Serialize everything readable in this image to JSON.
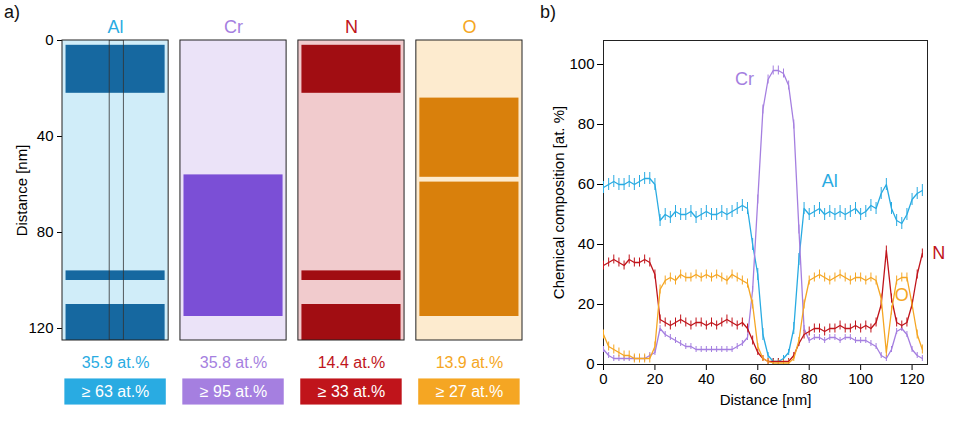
{
  "panel_a": {
    "panel": "a)",
    "y_label": "Distance [nm]",
    "ylim": [
      0,
      125
    ],
    "yticks": [
      0,
      40,
      80,
      120
    ],
    "columns": [
      {
        "element": "Al",
        "color": "#29abe2",
        "isosurface_color": "#1668a0",
        "composition": "35.9 at.%",
        "threshold": "≥ 63 at.%",
        "isosurfaces": [
          [
            2,
            22
          ],
          [
            96,
            100
          ],
          [
            110,
            125
          ]
        ]
      },
      {
        "element": "Cr",
        "color": "#a57fe0",
        "isosurface_color": "#7b4fd6",
        "composition": "35.8 at.%",
        "threshold": "≥ 95 at.%",
        "isosurfaces": [
          [
            56,
            115
          ]
        ]
      },
      {
        "element": "N",
        "color": "#c0141b",
        "isosurface_color": "#a10d12",
        "composition": "14.4 at.%",
        "threshold": "≥ 33 at.%",
        "isosurfaces": [
          [
            2,
            22
          ],
          [
            96,
            100
          ],
          [
            110,
            125
          ]
        ]
      },
      {
        "element": "O",
        "color": "#f5a623",
        "isosurface_color": "#d9800c",
        "composition": "13.9 at.%",
        "threshold": "≥ 27 at.%",
        "isosurfaces": [
          [
            24,
            57
          ],
          [
            59,
            115
          ]
        ]
      }
    ]
  },
  "chart_data": {
    "type": "line",
    "panel": "b)",
    "x_label": "Distance [nm]",
    "y_label": "Chemical composition [at. %]",
    "x": [
      0,
      2,
      4,
      6,
      8,
      10,
      12,
      14,
      16,
      18,
      20,
      22,
      24,
      26,
      28,
      30,
      32,
      34,
      36,
      38,
      40,
      42,
      44,
      46,
      48,
      50,
      52,
      54,
      56,
      58,
      60,
      62,
      64,
      66,
      68,
      70,
      72,
      74,
      76,
      78,
      80,
      82,
      84,
      86,
      88,
      90,
      92,
      94,
      96,
      98,
      100,
      102,
      104,
      106,
      108,
      110,
      112,
      114,
      116,
      118,
      120,
      122,
      124
    ],
    "xlim": [
      0,
      126
    ],
    "xticks": [
      0,
      20,
      40,
      60,
      80,
      100,
      120
    ],
    "ylim": [
      0,
      108
    ],
    "yticks": [
      0,
      20,
      40,
      60,
      80,
      100
    ],
    "series": [
      {
        "name": "Al",
        "color": "#29abe2",
        "values": [
          59,
          60,
          61,
          60,
          60,
          61,
          60,
          61,
          62,
          62,
          60,
          48,
          50,
          49,
          51,
          50,
          50,
          51,
          49,
          50,
          51,
          50,
          50,
          51,
          50,
          51,
          52,
          53,
          52,
          40,
          30,
          10,
          3,
          1,
          1,
          2,
          4,
          12,
          35,
          52,
          50,
          51,
          52,
          50,
          51,
          50,
          51,
          50,
          51,
          52,
          50,
          51,
          53,
          52,
          57,
          60,
          52,
          48,
          47,
          50,
          55,
          57,
          58
        ],
        "errors": [
          2,
          2,
          2,
          2,
          2,
          2,
          2,
          2,
          2,
          2,
          2,
          2,
          2,
          2,
          2,
          2,
          2,
          2,
          2,
          2,
          2,
          2,
          2,
          2,
          2,
          2,
          2,
          2,
          2,
          2,
          2,
          2,
          1,
          1,
          1,
          1,
          1,
          2,
          2,
          2,
          2,
          2,
          2,
          2,
          2,
          2,
          2,
          2,
          2,
          2,
          2,
          2,
          2,
          2,
          2,
          2,
          2,
          2,
          2,
          2,
          2,
          2,
          2
        ]
      },
      {
        "name": "Cr",
        "color": "#a57fe0",
        "values": [
          5,
          3,
          2,
          2,
          2,
          2,
          2,
          2,
          2,
          3,
          4,
          12,
          10,
          9,
          8,
          7,
          6,
          6,
          5,
          5,
          5,
          5,
          5,
          5,
          5,
          5,
          6,
          7,
          9,
          25,
          55,
          85,
          95,
          98,
          98,
          97,
          93,
          80,
          45,
          12,
          8,
          9,
          9,
          8,
          9,
          9,
          8,
          9,
          9,
          8,
          8,
          8,
          7,
          6,
          3,
          2,
          5,
          11,
          12,
          10,
          5,
          3,
          2
        ],
        "errors": [
          1,
          1,
          1,
          1,
          1,
          1,
          1,
          1,
          1,
          1,
          1,
          1,
          1,
          1,
          1,
          1,
          1,
          1,
          1,
          1,
          1,
          1,
          1,
          1,
          1,
          1,
          1,
          1,
          1,
          1,
          1.5,
          1.5,
          1.5,
          1.5,
          1.5,
          1.5,
          1.5,
          1.5,
          1.5,
          1,
          1,
          1,
          1,
          1,
          1,
          1,
          1,
          1,
          1,
          1,
          1,
          1,
          1,
          1,
          1,
          1,
          1,
          1,
          1,
          1,
          1,
          1,
          1
        ]
      },
      {
        "name": "N",
        "color": "#c0141b",
        "values": [
          33,
          34,
          35,
          34,
          33,
          35,
          34,
          34,
          35,
          34,
          30,
          15,
          14,
          13,
          14,
          15,
          14,
          13,
          14,
          14,
          13,
          14,
          13,
          14,
          15,
          14,
          13,
          14,
          12,
          8,
          4,
          2,
          1,
          1,
          1,
          1,
          1,
          3,
          7,
          10,
          11,
          12,
          12,
          11,
          12,
          12,
          13,
          12,
          12,
          13,
          12,
          13,
          12,
          14,
          20,
          38,
          22,
          14,
          13,
          14,
          20,
          30,
          37
        ],
        "errors": [
          1.5,
          1.5,
          1.5,
          1.5,
          1.5,
          1.5,
          1.5,
          1.5,
          1.5,
          1.5,
          1.5,
          1.5,
          1.5,
          1.5,
          1.5,
          1.5,
          1.5,
          1.5,
          1.5,
          1.5,
          1.5,
          1.5,
          1.5,
          1.5,
          1.5,
          1.5,
          1.5,
          1.5,
          1.5,
          1.5,
          1,
          1,
          1,
          1,
          1,
          1,
          1,
          1,
          1,
          1.5,
          1.5,
          1.5,
          1.5,
          1.5,
          1.5,
          1.5,
          1.5,
          1.5,
          1.5,
          1.5,
          1.5,
          1.5,
          1.5,
          1.5,
          1.5,
          1.5,
          1.5,
          1.5,
          1.5,
          1.5,
          1.5,
          1.5,
          1.5
        ]
      },
      {
        "name": "O",
        "color": "#f5a623",
        "values": [
          10,
          6,
          5,
          4,
          3,
          3,
          2,
          2,
          2,
          2,
          6,
          25,
          28,
          29,
          28,
          30,
          29,
          29,
          30,
          29,
          30,
          29,
          30,
          29,
          28,
          30,
          29,
          28,
          27,
          20,
          6,
          2,
          1,
          0.5,
          0.5,
          0.5,
          0.5,
          2,
          8,
          20,
          28,
          29,
          30,
          29,
          28,
          29,
          30,
          29,
          28,
          29,
          29,
          28,
          29,
          28,
          22,
          4,
          18,
          28,
          29,
          29,
          20,
          10,
          5
        ],
        "errors": [
          1.5,
          1.5,
          1.5,
          1.5,
          1.5,
          1.5,
          1.5,
          1.5,
          1.5,
          1.5,
          1.5,
          1.5,
          1.5,
          1.5,
          1.5,
          1.5,
          1.5,
          1.5,
          1.5,
          1.5,
          1.5,
          1.5,
          1.5,
          1.5,
          1.5,
          1.5,
          1.5,
          1.5,
          1.5,
          1.5,
          1,
          1,
          1,
          1,
          1,
          1,
          1,
          1,
          1,
          1.5,
          1.5,
          1.5,
          1.5,
          1.5,
          1.5,
          1.5,
          1.5,
          1.5,
          1.5,
          1.5,
          1.5,
          1.5,
          1.5,
          1.5,
          1.5,
          1.5,
          1.5,
          1.5,
          1.5,
          1.5,
          1.5,
          1.5,
          1.5
        ]
      }
    ]
  }
}
